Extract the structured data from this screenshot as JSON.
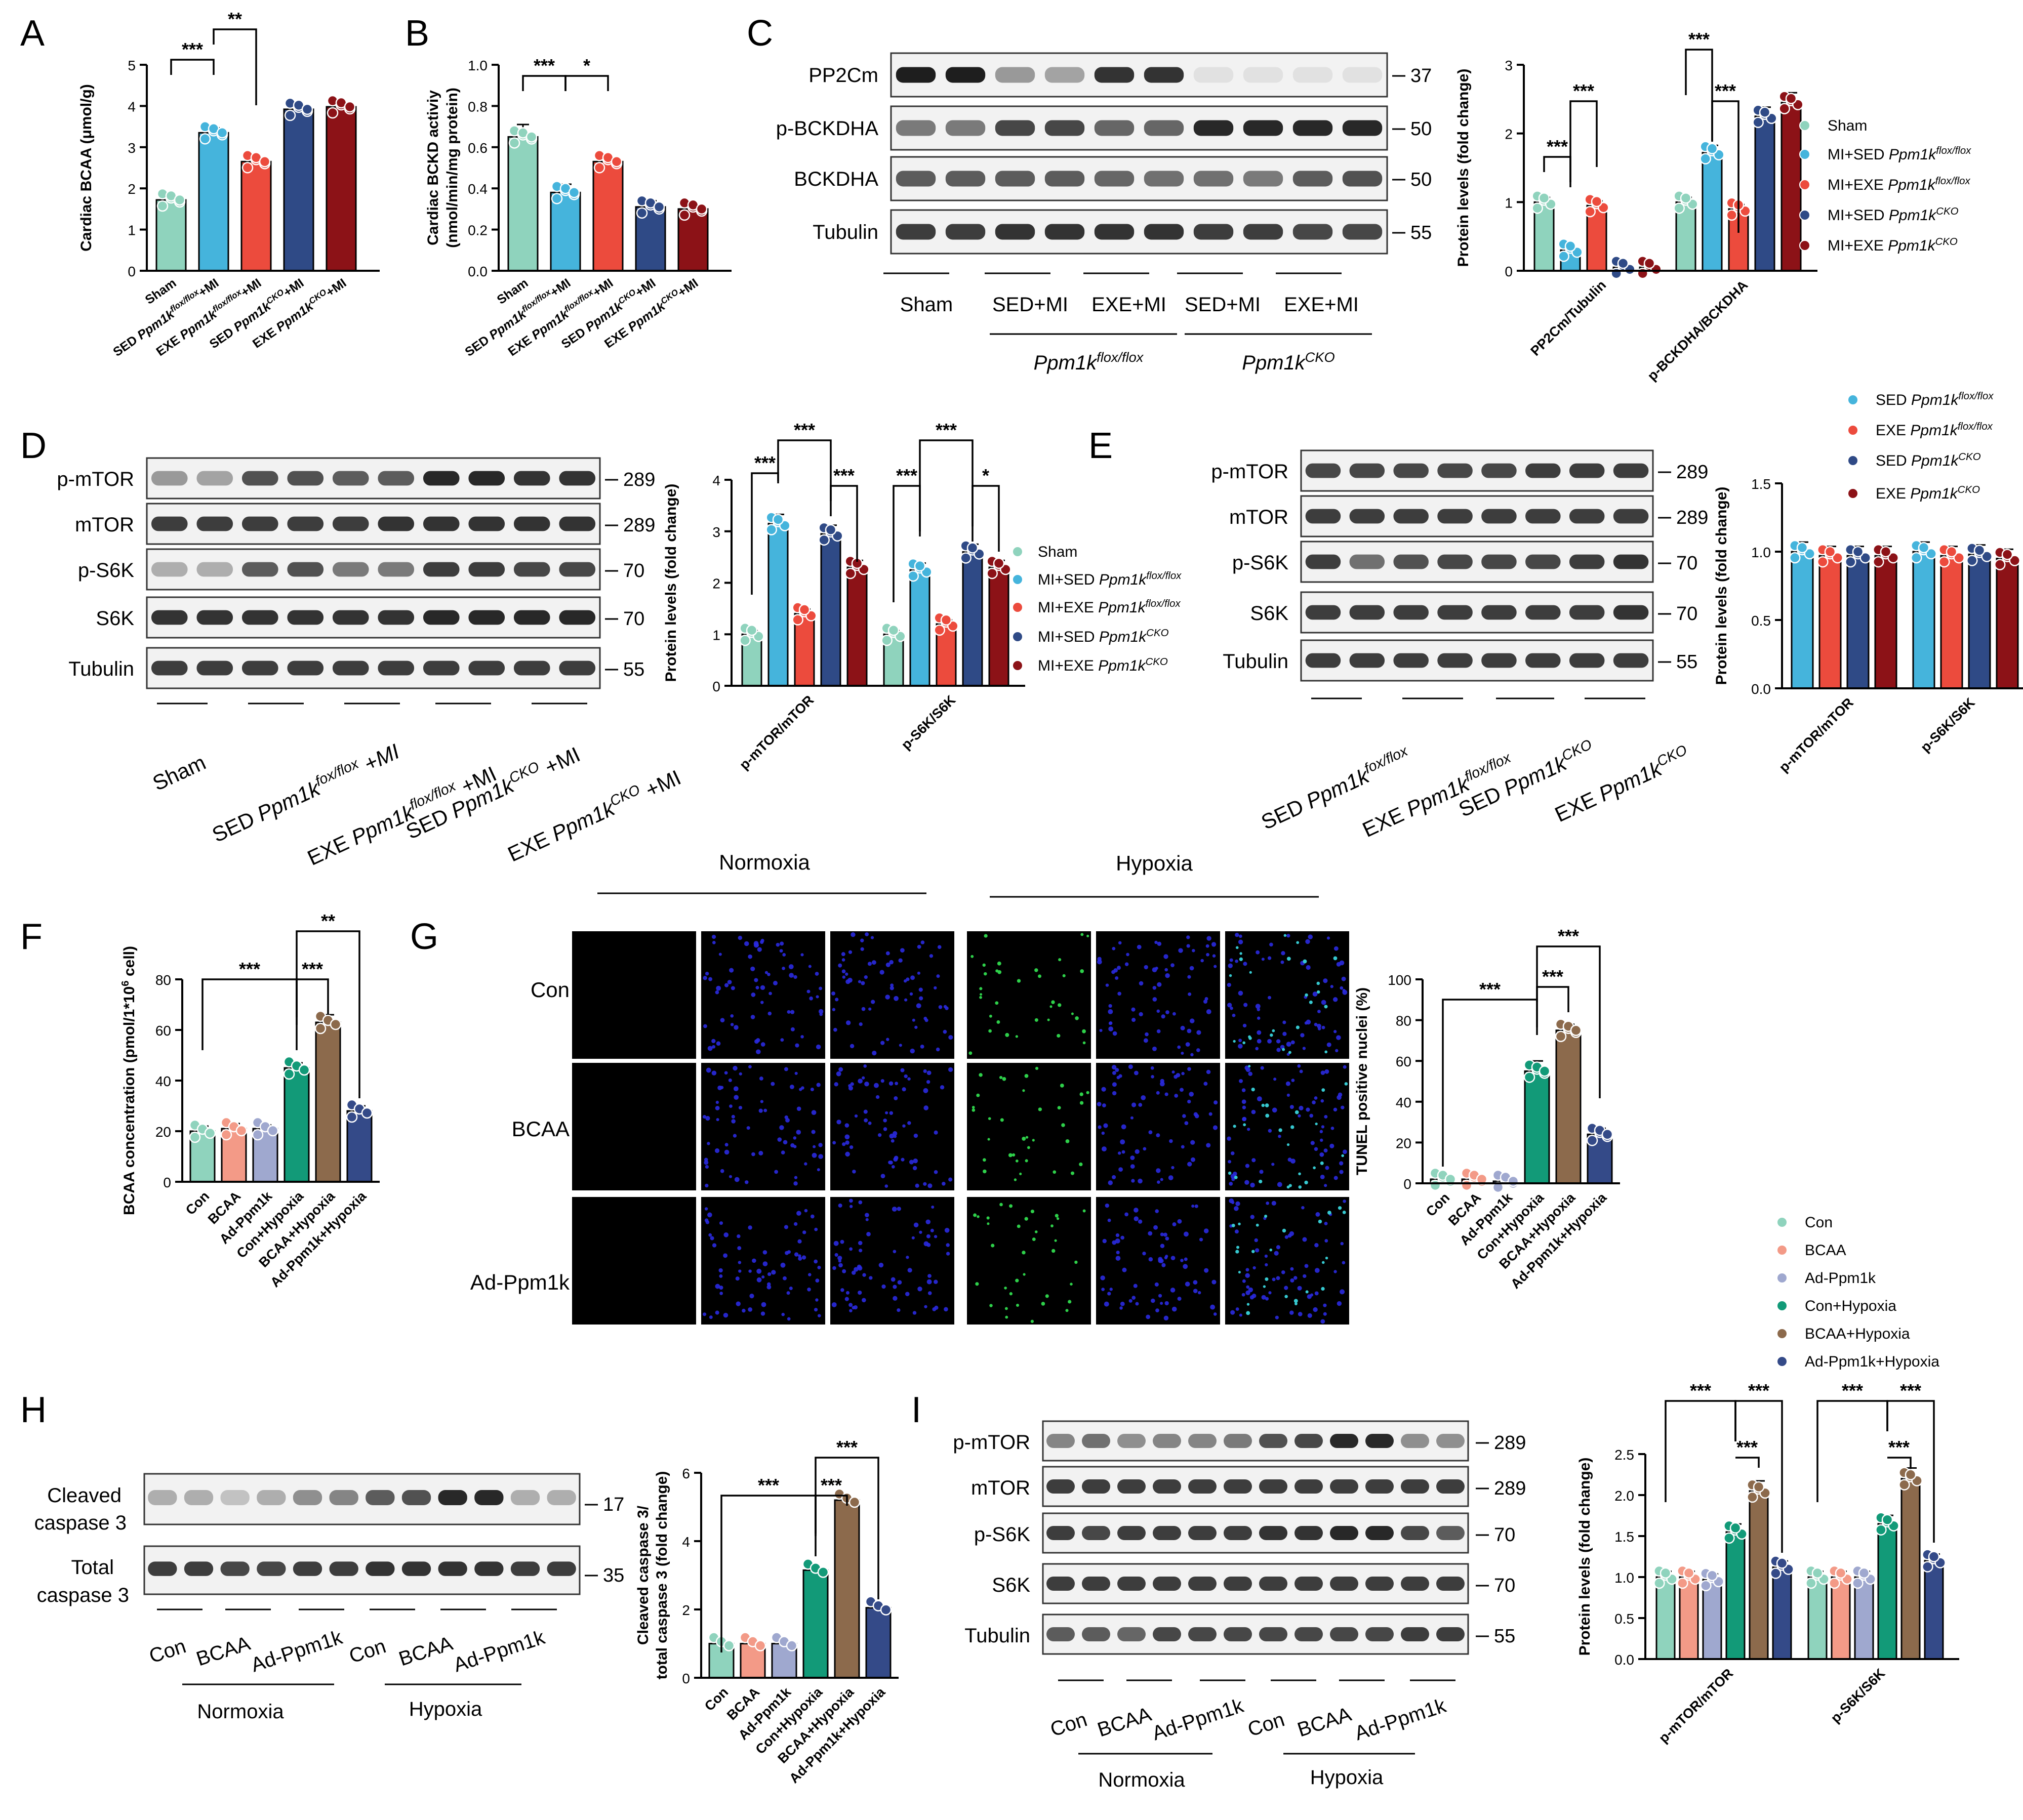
{
  "panels": [
    "A",
    "B",
    "C",
    "D",
    "E",
    "F",
    "G",
    "H",
    "I"
  ],
  "colors": {
    "sham": "#8fd3bd",
    "sed_flox": "#45b4dc",
    "exe_flox": "#ec4b3d",
    "sed_cko": "#2f4a86",
    "exe_cko": "#8c1217",
    "con": "#8fd3bd",
    "bcaa": "#f39a87",
    "adppm": "#9fa8cf",
    "con_hyp": "#129a78",
    "bcaa_hyp": "#8c6a4c",
    "adppm_hyp": "#344a88"
  },
  "sig": {
    "s3": "***",
    "s2": "**",
    "s1": "*"
  },
  "mw": {
    "k37": "37",
    "k50": "50",
    "k55": "55",
    "k289": "289",
    "k70": "70",
    "k17": "17",
    "k35": "35"
  },
  "blot_labels": {
    "pp2cm": "PP2Cm",
    "pbckdha": "p-BCKDHA",
    "bckdha": "BCKDHA",
    "tubulin": "Tubulin",
    "pmtor": "p-mTOR",
    "mtor": "mTOR",
    "ps6k": "p-S6K",
    "s6k": "S6K",
    "cleaved1": "Cleaved",
    "cleaved2": "caspase 3",
    "total1": "Total",
    "total2": "caspase 3"
  },
  "group_labels": {
    "sham": "Sham",
    "sed_mi": "SED+MI",
    "exe_mi": "EXE+MI",
    "flox_geno": "Ppm1k",
    "flox_sup": "flox/flox",
    "cko_sup": "CKO",
    "sed": "SED",
    "exe": "EXE",
    "ppm": "Ppm1k",
    "mi": "+MI",
    "fox_sup": "fox/flox",
    "con": "Con",
    "bcaa": "BCAA",
    "adppm": "Ad-Ppm1k",
    "normoxia": "Normoxia",
    "hypoxia": "Hypoxia"
  },
  "legend_mi": {
    "sham": "Sham",
    "mi_sed": "MI+SED ",
    "mi_exe": "MI+EXE ",
    "ppm": "Ppm1k",
    "flox": "flox/flox",
    "cko": "CKO"
  },
  "legend_e": {
    "sed": "SED ",
    "exe": "EXE ",
    "ppm": "Ppm1k",
    "flox": "flox/flox",
    "cko": "CKO"
  },
  "legend_cell": [
    "Con",
    "BCAA",
    "Ad-Ppm1k",
    "Con+Hypoxia",
    "BCAA+Hypoxia",
    "Ad-Ppm1k+Hypoxia"
  ],
  "cell_xlabels": [
    "Con",
    "BCAA",
    "Ad-Ppm1k",
    "Con+Hypoxia",
    "BCAA+Hypoxia",
    "Ad-Ppm1k+Hypoxia"
  ],
  "microscopy": {
    "rows": [
      "Con",
      "BCAA",
      "Ad-Ppm1k"
    ],
    "normoxia": "Normoxia",
    "hypoxia": "Hypoxia"
  },
  "chart_data": [
    {
      "panel": "A",
      "type": "bar",
      "ylabel": "Cardiac BCAA (μmol/g)",
      "ylim": [
        0,
        5
      ],
      "ticks": [
        0,
        1,
        2,
        3,
        4,
        5
      ],
      "categories": [
        "Sham",
        "SED Ppm1k flox/flox +MI",
        "EXE Ppm1k flox/flox +MI",
        "SED Ppm1k CKO +MI",
        "EXE Ppm1k CKO +MI"
      ],
      "values": [
        1.72,
        3.35,
        2.65,
        3.92,
        3.98
      ],
      "errors": [
        0.07,
        0.12,
        0.1,
        0.1,
        0.07
      ]
    },
    {
      "panel": "B",
      "type": "bar",
      "ylabel": "Cardiac BCKD activiy (nmol/min/mg protein)",
      "ylim": [
        0,
        1.0
      ],
      "ticks": [
        0,
        0.2,
        0.4,
        0.6,
        0.8,
        1.0
      ],
      "categories": [
        "Sham",
        "SED Ppm1k flox/flox +MI",
        "EXE Ppm1k flox/flox +MI",
        "SED Ppm1k CKO +MI",
        "EXE Ppm1k CKO +MI"
      ],
      "values": [
        0.65,
        0.38,
        0.53,
        0.31,
        0.3
      ],
      "errors": [
        0.06,
        0.04,
        0.02,
        0.03,
        0.01
      ]
    },
    {
      "panel": "C",
      "type": "bar",
      "ylabel": "Protein levels (fold change)",
      "ylim": [
        0,
        3
      ],
      "ticks": [
        0,
        1,
        2,
        3
      ],
      "categories": [
        "PP2Cm/Tubulin",
        "p-BCKDHA/BCKDHA"
      ],
      "series": [
        {
          "name": "MI+SED Ppm1k flox/flox",
          "values": [
            1.0,
            1.0
          ]
        },
        {
          "name": "MI+SED Ppm1k flox/flox",
          "values": [
            0.3,
            1.72
          ]
        },
        {
          "name": "MI+EXE Ppm1k flox/flox",
          "values": [
            0.95,
            0.9
          ]
        },
        {
          "name": "MI+SED Ppm1k CKO",
          "values": [
            0.05,
            2.25
          ]
        },
        {
          "name": "MI+EXE Ppm1k CKO",
          "values": [
            0.05,
            2.45
          ]
        }
      ]
    },
    {
      "panel": "D",
      "type": "bar",
      "ylabel": "Protein levels (fold change)",
      "ylim": [
        0,
        4
      ],
      "ticks": [
        0,
        1,
        2,
        3,
        4
      ],
      "categories": [
        "p-mTOR/mTOR",
        "p-S6K/S6K"
      ],
      "series": [
        {
          "name": "Sham",
          "values": [
            1.0,
            1.0
          ]
        },
        {
          "name": "MI+SED Ppm1k flox/flox",
          "values": [
            3.15,
            2.25
          ]
        },
        {
          "name": "MI+EXE Ppm1k flox/flox",
          "values": [
            1.4,
            1.2
          ]
        },
        {
          "name": "MI+SED Ppm1k CKO",
          "values": [
            2.95,
            2.6
          ]
        },
        {
          "name": "MI+EXE Ppm1k CKO",
          "values": [
            2.3,
            2.3
          ]
        }
      ]
    },
    {
      "panel": "E",
      "type": "bar",
      "ylabel": "Protein levels (fold change)",
      "ylim": [
        0,
        1.5
      ],
      "ticks": [
        0.0,
        0.5,
        1.0,
        1.5
      ],
      "categories": [
        "p-mTOR/mTOR",
        "p-S6K/S6K"
      ],
      "series": [
        {
          "name": "SED Ppm1k flox/flox",
          "values": [
            1.0,
            1.0
          ]
        },
        {
          "name": "EXE Ppm1k flox/flox",
          "values": [
            0.97,
            0.97
          ]
        },
        {
          "name": "SED Ppm1k CKO",
          "values": [
            0.97,
            0.98
          ]
        },
        {
          "name": "EXE Ppm1k CKO",
          "values": [
            0.97,
            0.95
          ]
        }
      ]
    },
    {
      "panel": "F",
      "type": "bar",
      "ylabel": "BCAA concentration (pmol/1*10^6 cell)",
      "ylim": [
        0,
        80
      ],
      "ticks": [
        0,
        20,
        40,
        60,
        80
      ],
      "categories": [
        "Con",
        "BCAA",
        "Ad-Ppm1k",
        "Con+Hypoxia",
        "BCAA+Hypoxia",
        "Ad-Ppm1k+Hypoxia"
      ],
      "values": [
        20,
        21,
        21,
        45,
        63,
        28
      ],
      "errors": [
        2,
        2,
        1.5,
        2,
        3,
        2
      ]
    },
    {
      "panel": "G",
      "type": "bar",
      "ylabel": "TUNEL positive nuclei (%)",
      "ylim": [
        0,
        100
      ],
      "ticks": [
        0,
        20,
        40,
        60,
        80,
        100
      ],
      "categories": [
        "Con",
        "BCAA",
        "Ad-Ppm1k",
        "Con+Hypoxia",
        "BCAA+Hypoxia",
        "Ad-Ppm1k+Hypoxia"
      ],
      "values": [
        2,
        2,
        1,
        55,
        75,
        24
      ],
      "errors": [
        0.8,
        0.8,
        0.5,
        5,
        3,
        3
      ]
    },
    {
      "panel": "H",
      "type": "bar",
      "ylabel": "Cleaved caspase 3/ total caspase 3 (fold change)",
      "ylim": [
        0,
        6
      ],
      "ticks": [
        0,
        2,
        4,
        6
      ],
      "categories": [
        "Con",
        "BCAA",
        "Ad-Ppm1k",
        "Con+Hypoxia",
        "BCAA+Hypoxia",
        "Ad-Ppm1k+Hypoxia"
      ],
      "values": [
        1.0,
        1.0,
        1.0,
        3.15,
        5.2,
        2.05
      ],
      "errors": [
        0.04,
        0.04,
        0.04,
        0.06,
        0.04,
        0.05
      ]
    },
    {
      "panel": "I",
      "type": "bar",
      "ylabel": "Protein levels (fold change)",
      "ylim": [
        0,
        2.5
      ],
      "ticks": [
        0.0,
        0.5,
        1.0,
        1.5,
        2.0,
        2.5
      ],
      "categories": [
        "p-mTOR/mTOR",
        "p-S6K/S6K"
      ],
      "series": [
        {
          "name": "Con",
          "values": [
            1.0,
            1.0
          ]
        },
        {
          "name": "BCAA",
          "values": [
            1.0,
            1.0
          ]
        },
        {
          "name": "Ad-Ppm1k",
          "values": [
            0.97,
            1.0
          ]
        },
        {
          "name": "Con+Hypoxia",
          "values": [
            1.55,
            1.65
          ]
        },
        {
          "name": "BCAA+Hypoxia",
          "values": [
            2.05,
            2.2
          ]
        },
        {
          "name": "Ad-Ppm1k+Hypoxia",
          "values": [
            1.12,
            1.2
          ]
        }
      ]
    }
  ]
}
